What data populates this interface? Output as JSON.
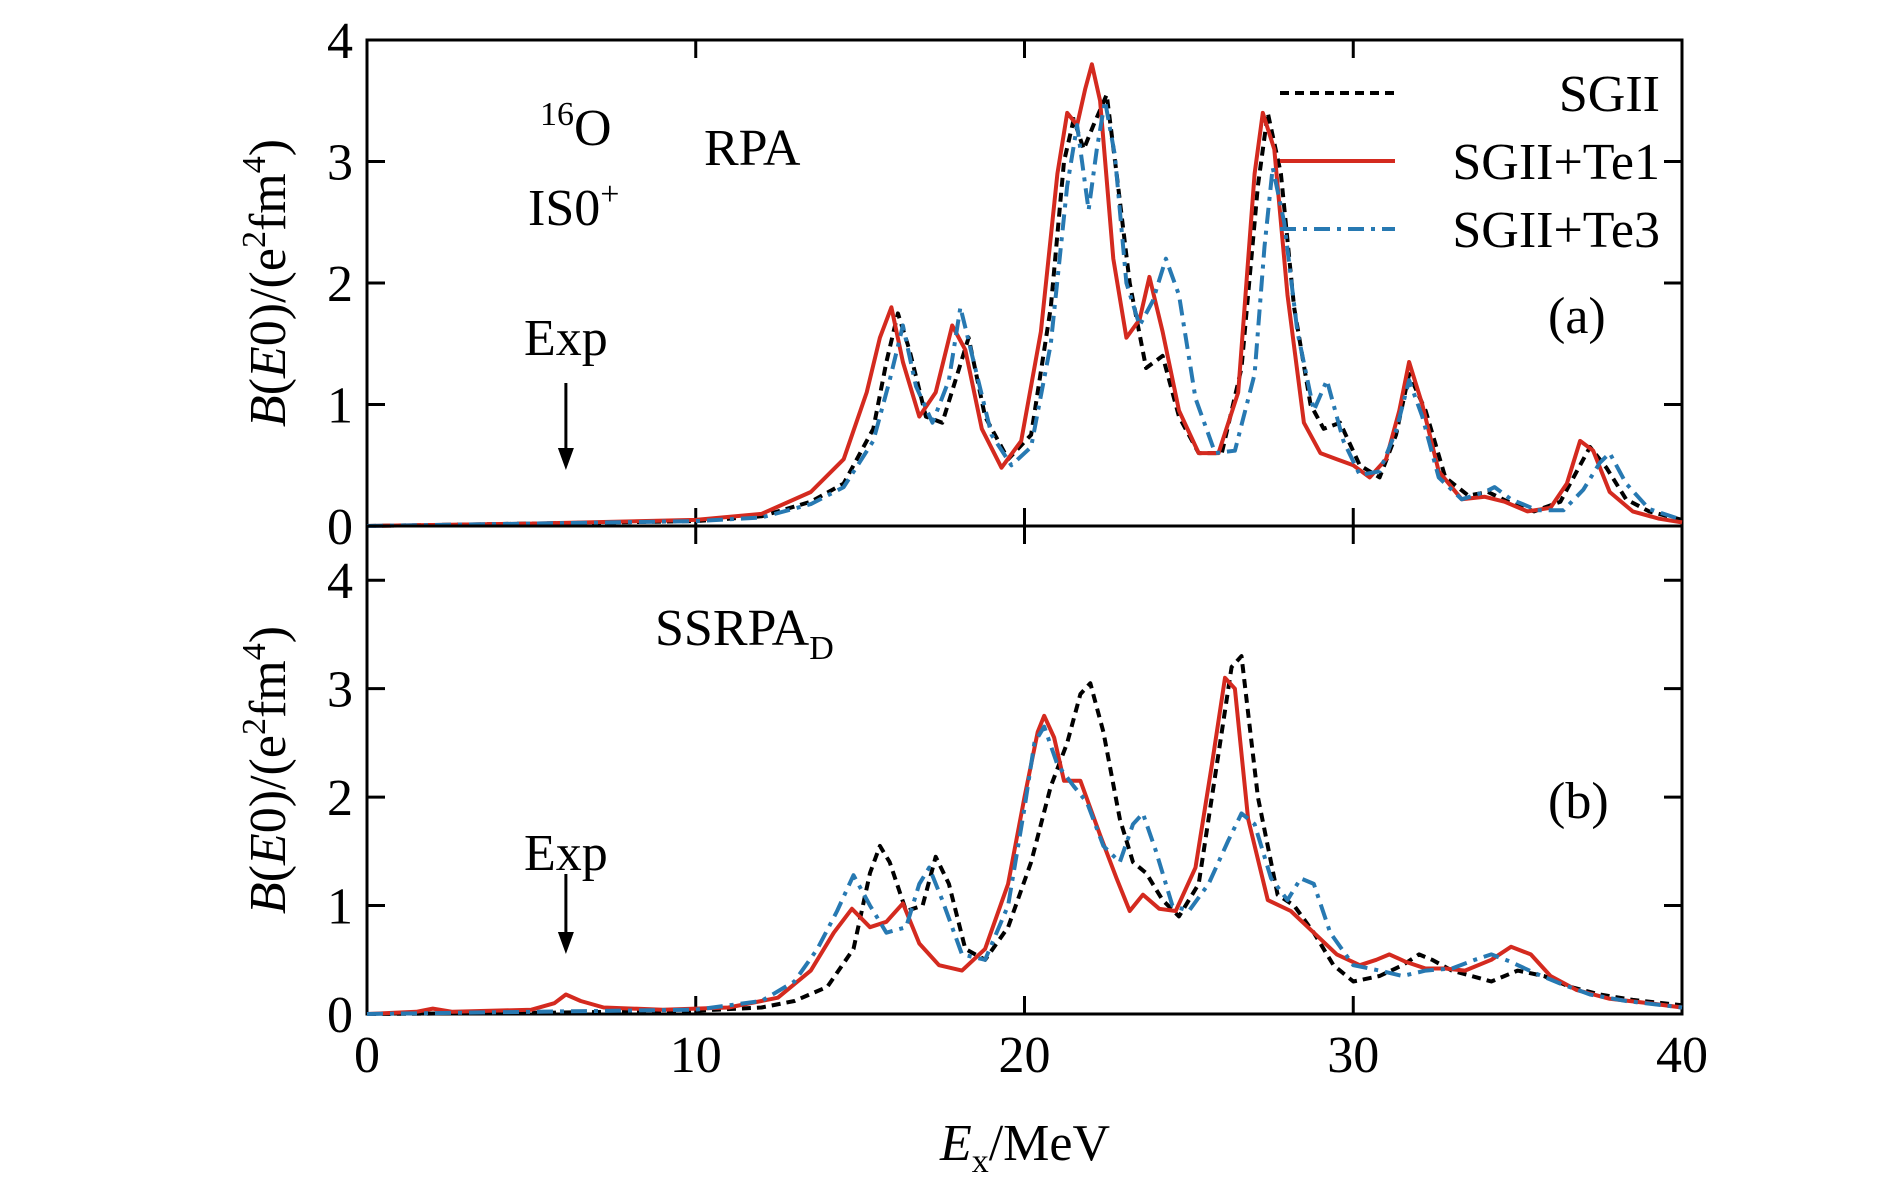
{
  "chart_data": [
    {
      "type": "line",
      "panel": "(a)",
      "nucleus_mass": "16",
      "nucleus_symbol": "O",
      "mode_main": "IS0",
      "mode_sup": "+",
      "method": "RPA",
      "exp_label": "Exp",
      "exp_energy": 6.05,
      "xlim": [
        0,
        40
      ],
      "ylim": [
        0,
        4
      ],
      "xticks": [
        0,
        10,
        20,
        30,
        40
      ],
      "yticks": [
        0,
        1,
        2,
        3,
        4
      ],
      "ylabel": "B(E0)/(e2fm4)",
      "legend_position": "top-right",
      "series": [
        {
          "name": "SGII",
          "color": "#000000",
          "dash": "dot",
          "x": [
            0,
            5,
            10,
            12,
            13.5,
            14.5,
            15.4,
            15.8,
            16.15,
            16.5,
            17.0,
            17.5,
            17.9,
            18.3,
            18.8,
            19.5,
            20.2,
            20.8,
            21.2,
            21.5,
            21.8,
            22.1,
            22.5,
            22.8,
            23.2,
            23.7,
            24.2,
            24.7,
            25.3,
            26.0,
            26.6,
            27.1,
            27.4,
            27.8,
            28.2,
            28.7,
            29.1,
            29.6,
            30.2,
            30.8,
            31.3,
            31.7,
            32.2,
            32.8,
            33.5,
            34.1,
            34.7,
            35.5,
            36.3,
            36.8,
            37.2,
            37.7,
            38.3,
            39.0,
            40
          ],
          "y": [
            0,
            0.02,
            0.04,
            0.08,
            0.2,
            0.35,
            0.8,
            1.35,
            1.75,
            1.45,
            0.9,
            0.85,
            1.2,
            1.55,
            0.9,
            0.55,
            0.75,
            1.8,
            3.0,
            3.35,
            3.1,
            3.3,
            3.55,
            2.9,
            2.0,
            1.3,
            1.4,
            0.9,
            0.6,
            0.6,
            1.3,
            2.8,
            3.4,
            2.9,
            1.8,
            1.0,
            0.8,
            0.85,
            0.5,
            0.4,
            0.75,
            1.25,
            0.95,
            0.4,
            0.25,
            0.28,
            0.2,
            0.12,
            0.2,
            0.45,
            0.65,
            0.48,
            0.22,
            0.12,
            0.05
          ]
        },
        {
          "name": "SGII+Te1",
          "color": "#d42a1f",
          "dash": "solid",
          "x": [
            0,
            5,
            10,
            12,
            13.5,
            14.5,
            15.2,
            15.6,
            15.95,
            16.3,
            16.8,
            17.3,
            17.8,
            18.2,
            18.7,
            19.3,
            19.9,
            20.5,
            21.0,
            21.3,
            21.6,
            21.85,
            22.05,
            22.3,
            22.7,
            23.1,
            23.5,
            23.8,
            24.2,
            24.7,
            25.3,
            25.9,
            26.5,
            27.0,
            27.25,
            27.6,
            28.0,
            28.5,
            29.0,
            29.5,
            30.0,
            30.5,
            31.0,
            31.4,
            31.7,
            32.1,
            32.6,
            33.3,
            34.0,
            34.6,
            35.3,
            36.0,
            36.5,
            36.9,
            37.3,
            37.8,
            38.5,
            39.3,
            40
          ],
          "y": [
            0,
            0.02,
            0.05,
            0.1,
            0.28,
            0.55,
            1.1,
            1.55,
            1.8,
            1.35,
            0.9,
            1.1,
            1.65,
            1.45,
            0.8,
            0.48,
            0.7,
            1.6,
            2.9,
            3.4,
            3.3,
            3.6,
            3.8,
            3.5,
            2.2,
            1.55,
            1.7,
            2.05,
            1.6,
            0.95,
            0.6,
            0.6,
            1.1,
            2.9,
            3.4,
            3.1,
            1.9,
            0.85,
            0.6,
            0.55,
            0.5,
            0.4,
            0.55,
            0.95,
            1.35,
            1.0,
            0.45,
            0.22,
            0.24,
            0.2,
            0.12,
            0.15,
            0.35,
            0.7,
            0.62,
            0.28,
            0.12,
            0.06,
            0.03
          ]
        },
        {
          "name": "SGII+Te3",
          "color": "#2779b2",
          "dash": "dashdot",
          "x": [
            0,
            5,
            10,
            12,
            13.5,
            14.5,
            15.4,
            15.9,
            16.3,
            16.7,
            17.2,
            17.7,
            18.05,
            18.5,
            19.0,
            19.6,
            20.2,
            20.8,
            21.3,
            21.6,
            21.95,
            22.2,
            22.45,
            22.75,
            23.1,
            23.5,
            23.9,
            24.3,
            24.7,
            25.2,
            25.8,
            26.4,
            27.0,
            27.3,
            27.55,
            27.9,
            28.3,
            28.8,
            29.2,
            29.7,
            30.2,
            30.8,
            31.3,
            31.7,
            32.1,
            32.6,
            33.3,
            34.0,
            34.3,
            34.8,
            35.6,
            36.4,
            37.0,
            37.5,
            37.8,
            38.3,
            39.0,
            40
          ],
          "y": [
            0,
            0.02,
            0.04,
            0.07,
            0.18,
            0.32,
            0.7,
            1.2,
            1.65,
            1.15,
            0.85,
            1.2,
            1.8,
            1.3,
            0.75,
            0.5,
            0.65,
            1.5,
            2.8,
            3.3,
            2.6,
            3.1,
            3.5,
            3.05,
            2.0,
            1.65,
            1.85,
            2.2,
            1.9,
            1.05,
            0.6,
            0.62,
            1.25,
            2.3,
            2.95,
            2.5,
            1.6,
            0.95,
            1.2,
            0.7,
            0.42,
            0.45,
            0.78,
            1.2,
            0.9,
            0.4,
            0.22,
            0.28,
            0.32,
            0.22,
            0.13,
            0.13,
            0.3,
            0.52,
            0.6,
            0.35,
            0.14,
            0.05
          ]
        }
      ]
    },
    {
      "type": "line",
      "panel": "(b)",
      "method_main": "SSRPA",
      "method_sub": "D",
      "exp_label": "Exp",
      "exp_energy": 6.05,
      "xlim": [
        0,
        40
      ],
      "ylim": [
        0,
        4.5
      ],
      "xticks": [
        0,
        10,
        20,
        30,
        40
      ],
      "yticks": [
        0,
        1,
        2,
        3,
        4
      ],
      "ylabel": "B(E0)/(e2fm4)",
      "xlabel": "Ex/MeV",
      "series": [
        {
          "name": "SGII",
          "color": "#000000",
          "dash": "dot",
          "x": [
            0,
            5,
            10,
            12,
            13.0,
            14.0,
            14.8,
            15.3,
            15.6,
            15.9,
            16.4,
            16.9,
            17.3,
            17.7,
            18.2,
            18.8,
            19.5,
            20.2,
            20.8,
            21.3,
            21.7,
            22.0,
            22.4,
            22.9,
            23.3,
            23.7,
            24.2,
            24.7,
            25.3,
            25.9,
            26.3,
            26.6,
            27.1,
            27.7,
            28.2,
            28.8,
            29.4,
            30.0,
            30.8,
            31.5,
            32.0,
            32.4,
            33.0,
            33.6,
            34.2,
            35.0,
            35.8,
            36.6,
            37.5,
            38.5,
            40
          ],
          "y": [
            0,
            0.01,
            0.03,
            0.06,
            0.12,
            0.25,
            0.6,
            1.3,
            1.55,
            1.4,
            0.95,
            1.0,
            1.45,
            1.2,
            0.6,
            0.5,
            0.8,
            1.4,
            2.1,
            2.5,
            2.95,
            3.05,
            2.6,
            1.8,
            1.4,
            1.3,
            1.05,
            0.9,
            1.2,
            2.4,
            3.2,
            3.3,
            2.0,
            1.1,
            1.0,
            0.75,
            0.45,
            0.3,
            0.35,
            0.45,
            0.55,
            0.5,
            0.4,
            0.35,
            0.3,
            0.4,
            0.35,
            0.25,
            0.18,
            0.13,
            0.08
          ]
        },
        {
          "name": "SGII+Te1",
          "color": "#d42a1f",
          "dash": "solid",
          "x": [
            0,
            1.5,
            2.0,
            2.6,
            5.0,
            5.7,
            6.05,
            6.5,
            7.2,
            9.0,
            11.0,
            12.5,
            13.5,
            14.2,
            14.75,
            15.3,
            15.8,
            16.3,
            16.8,
            17.4,
            18.1,
            18.8,
            19.5,
            20.0,
            20.4,
            20.6,
            20.9,
            21.2,
            21.7,
            22.3,
            22.8,
            23.2,
            23.6,
            24.1,
            24.6,
            25.2,
            25.7,
            26.1,
            26.4,
            26.8,
            27.4,
            28.1,
            28.8,
            29.5,
            30.2,
            30.7,
            31.1,
            31.6,
            32.2,
            32.8,
            33.4,
            34.2,
            34.8,
            35.4,
            36.0,
            36.8,
            37.8,
            39.0,
            40
          ],
          "y": [
            0,
            0.02,
            0.05,
            0.02,
            0.04,
            0.1,
            0.18,
            0.12,
            0.06,
            0.04,
            0.06,
            0.15,
            0.4,
            0.75,
            0.97,
            0.8,
            0.85,
            1.02,
            0.65,
            0.45,
            0.4,
            0.6,
            1.2,
            2.0,
            2.6,
            2.75,
            2.55,
            2.15,
            2.15,
            1.65,
            1.25,
            0.95,
            1.1,
            0.97,
            0.95,
            1.35,
            2.3,
            3.1,
            3.0,
            1.8,
            1.05,
            0.95,
            0.75,
            0.55,
            0.45,
            0.5,
            0.55,
            0.48,
            0.42,
            0.42,
            0.4,
            0.5,
            0.62,
            0.55,
            0.35,
            0.22,
            0.14,
            0.1,
            0.06
          ]
        },
        {
          "name": "SGII+Te3",
          "color": "#2779b2",
          "dash": "dashdot",
          "x": [
            0,
            5,
            10,
            12.0,
            13.0,
            13.7,
            14.3,
            14.8,
            15.3,
            15.8,
            16.4,
            16.8,
            17.1,
            17.5,
            18.1,
            18.8,
            19.5,
            20.0,
            20.3,
            20.6,
            21.0,
            21.5,
            21.9,
            22.4,
            22.9,
            23.3,
            23.6,
            24.0,
            24.5,
            25.0,
            25.6,
            26.2,
            26.6,
            27.0,
            27.5,
            28.0,
            28.4,
            28.8,
            29.3,
            30.0,
            30.8,
            31.5,
            32.2,
            33.0,
            33.7,
            34.2,
            34.8,
            35.5,
            36.3,
            37.2,
            38.3,
            40
          ],
          "y": [
            0,
            0.02,
            0.04,
            0.12,
            0.3,
            0.6,
            0.95,
            1.28,
            1.0,
            0.75,
            0.8,
            1.2,
            1.35,
            1.05,
            0.55,
            0.5,
            1.0,
            1.9,
            2.5,
            2.65,
            2.3,
            2.1,
            1.95,
            1.55,
            1.4,
            1.75,
            1.85,
            1.5,
            1.0,
            0.95,
            1.2,
            1.6,
            1.85,
            1.75,
            1.25,
            1.05,
            1.25,
            1.2,
            0.75,
            0.45,
            0.4,
            0.35,
            0.4,
            0.42,
            0.5,
            0.55,
            0.48,
            0.38,
            0.28,
            0.18,
            0.12,
            0.06
          ]
        }
      ]
    }
  ]
}
